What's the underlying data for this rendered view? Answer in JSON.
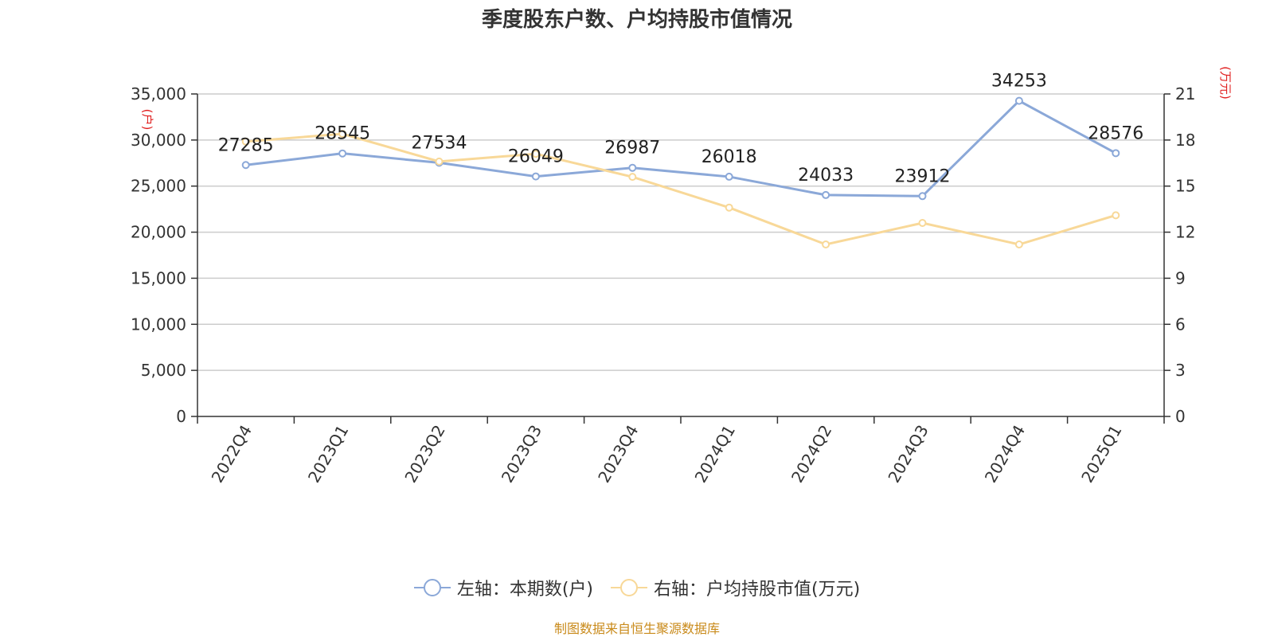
{
  "title": "季度股东户数、户均持股市值情况",
  "source": "制图数据来自恒生聚源数据库",
  "chart_data": {
    "type": "line",
    "title": "季度股东户数、户均持股市值情况",
    "categories": [
      "2022Q4",
      "2023Q1",
      "2023Q2",
      "2023Q3",
      "2023Q4",
      "2024Q1",
      "2024Q2",
      "2024Q3",
      "2024Q4",
      "2025Q1"
    ],
    "left_axis": {
      "unit": "(户)",
      "ticks": [
        "0",
        "5,000",
        "10,000",
        "15,000",
        "20,000",
        "25,000",
        "30,000",
        "35,000"
      ],
      "ylim": [
        0,
        35000
      ]
    },
    "right_axis": {
      "unit": "(万元)",
      "ticks": [
        "0",
        "3",
        "6",
        "9",
        "12",
        "15",
        "18",
        "21"
      ],
      "ylim": [
        0,
        21
      ]
    },
    "series": [
      {
        "name": "左轴：本期数(户)",
        "axis": "left",
        "color": "#8ba8d8",
        "values": [
          27285,
          28545,
          27534,
          26049,
          26987,
          26018,
          24033,
          23912,
          34253,
          28576
        ],
        "labels": [
          "27285",
          "28545",
          "27534",
          "26049",
          "26987",
          "26018",
          "24033",
          "23912",
          "34253",
          "28576"
        ]
      },
      {
        "name": "右轴：户均持股市值(万元)",
        "axis": "right",
        "color": "#f8d898",
        "values": [
          17.9,
          18.4,
          16.6,
          17.1,
          15.6,
          13.6,
          11.2,
          12.6,
          11.2,
          13.1
        ]
      }
    ],
    "grid": true,
    "legend_position": "bottom"
  }
}
